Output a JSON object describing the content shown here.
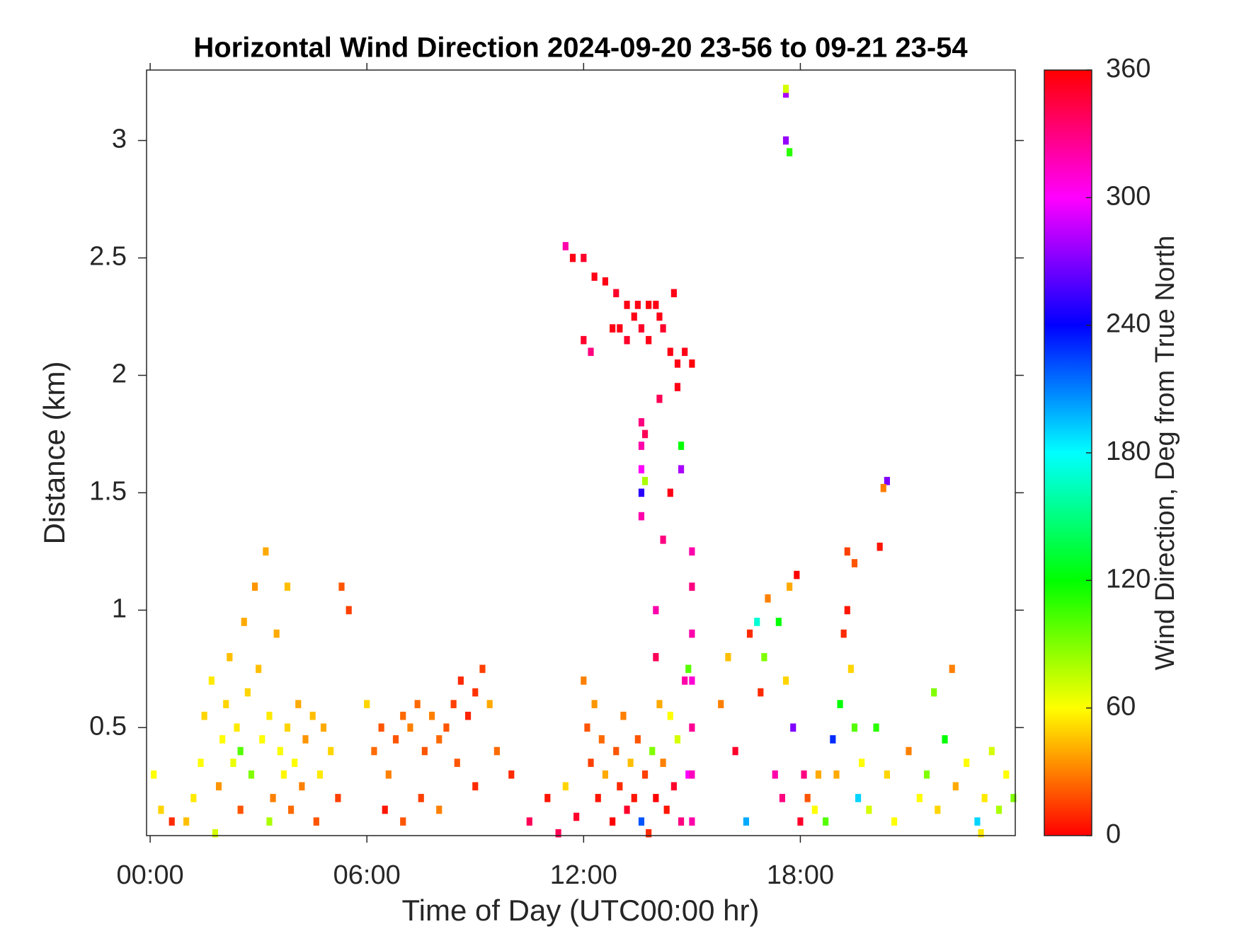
{
  "chart_data": {
    "type": "heatmap",
    "title": "Horizontal Wind Direction 2024-09-20 23-56 to 09-21 23-54",
    "xlabel": "Time of Day (UTC00:00 hr)",
    "ylabel": "Distance (km)",
    "colorbar_label": "Wind Direction, Deg from True North",
    "colormap": "hsv",
    "xlim": [
      -0.1,
      23.95
    ],
    "ylim": [
      0.04,
      3.3
    ],
    "clim": [
      0,
      360
    ],
    "xticks": [
      {
        "value": 0,
        "label": "00:00"
      },
      {
        "value": 6,
        "label": "06:00"
      },
      {
        "value": 12,
        "label": "12:00"
      },
      {
        "value": 18,
        "label": "18:00"
      }
    ],
    "yticks": [
      0.5,
      1,
      1.5,
      2,
      2.5,
      3
    ],
    "cticks": [
      0,
      60,
      120,
      180,
      240,
      300,
      360
    ],
    "cells": [
      [
        1.0,
        0.1,
        45
      ],
      [
        1.2,
        0.2,
        55
      ],
      [
        1.4,
        0.35,
        60
      ],
      [
        1.5,
        0.55,
        50
      ],
      [
        1.7,
        0.7,
        55
      ],
      [
        1.9,
        0.25,
        35
      ],
      [
        2.0,
        0.45,
        60
      ],
      [
        2.1,
        0.6,
        50
      ],
      [
        2.2,
        0.8,
        45
      ],
      [
        2.3,
        0.35,
        65
      ],
      [
        2.4,
        0.5,
        55
      ],
      [
        2.5,
        0.15,
        20
      ],
      [
        2.6,
        0.95,
        40
      ],
      [
        2.7,
        0.65,
        50
      ],
      [
        2.8,
        0.3,
        90
      ],
      [
        2.9,
        1.1,
        35
      ],
      [
        3.0,
        0.75,
        45
      ],
      [
        3.1,
        0.45,
        60
      ],
      [
        3.2,
        1.25,
        40
      ],
      [
        3.3,
        0.55,
        55
      ],
      [
        3.4,
        0.2,
        30
      ],
      [
        3.5,
        0.9,
        40
      ],
      [
        3.6,
        0.4,
        62
      ],
      [
        3.7,
        0.3,
        58
      ],
      [
        3.8,
        0.5,
        50
      ],
      [
        3.9,
        0.15,
        25
      ],
      [
        4.0,
        0.35,
        60
      ],
      [
        4.1,
        0.6,
        40
      ],
      [
        4.2,
        0.25,
        30
      ],
      [
        4.3,
        0.45,
        35
      ],
      [
        4.5,
        0.55,
        45
      ],
      [
        4.6,
        0.1,
        20
      ],
      [
        4.7,
        0.3,
        55
      ],
      [
        4.8,
        0.5,
        40
      ],
      [
        5.0,
        0.4,
        50
      ],
      [
        5.2,
        0.2,
        15
      ],
      [
        5.3,
        1.1,
        20
      ],
      [
        5.5,
        1.0,
        15
      ],
      [
        3.8,
        1.1,
        45
      ],
      [
        1.8,
        0.05,
        70
      ],
      [
        0.1,
        0.3,
        60
      ],
      [
        0.3,
        0.15,
        50
      ],
      [
        0.6,
        0.1,
        10
      ],
      [
        2.5,
        0.4,
        100
      ],
      [
        3.3,
        0.1,
        80
      ],
      [
        6.0,
        0.6,
        50
      ],
      [
        6.2,
        0.4,
        25
      ],
      [
        6.4,
        0.5,
        20
      ],
      [
        6.6,
        0.3,
        30
      ],
      [
        6.8,
        0.45,
        20
      ],
      [
        7.0,
        0.55,
        25
      ],
      [
        7.2,
        0.5,
        30
      ],
      [
        7.4,
        0.6,
        25
      ],
      [
        7.6,
        0.4,
        20
      ],
      [
        7.8,
        0.55,
        30
      ],
      [
        8.0,
        0.45,
        25
      ],
      [
        8.2,
        0.5,
        20
      ],
      [
        8.4,
        0.6,
        15
      ],
      [
        8.6,
        0.7,
        10
      ],
      [
        8.8,
        0.55,
        8
      ],
      [
        9.0,
        0.65,
        12
      ],
      [
        9.2,
        0.75,
        15
      ],
      [
        8.5,
        0.35,
        20
      ],
      [
        9.4,
        0.6,
        40
      ],
      [
        7.5,
        0.2,
        15
      ],
      [
        8.0,
        0.15,
        30
      ],
      [
        9.0,
        0.25,
        10
      ],
      [
        9.6,
        0.4,
        25
      ],
      [
        7.0,
        0.1,
        20
      ],
      [
        6.5,
        0.15,
        5
      ],
      [
        10.0,
        0.3,
        10
      ],
      [
        10.5,
        0.1,
        340
      ],
      [
        11.0,
        0.2,
        5
      ],
      [
        11.3,
        0.05,
        340
      ],
      [
        11.5,
        0.25,
        50
      ],
      [
        11.8,
        0.12,
        350
      ],
      [
        12.0,
        0.7,
        30
      ],
      [
        12.1,
        0.5,
        20
      ],
      [
        12.2,
        0.35,
        15
      ],
      [
        12.3,
        0.6,
        35
      ],
      [
        12.4,
        0.2,
        5
      ],
      [
        12.5,
        0.45,
        25
      ],
      [
        12.6,
        0.3,
        40
      ],
      [
        12.8,
        0.1,
        0
      ],
      [
        12.9,
        0.4,
        20
      ],
      [
        13.0,
        0.25,
        10
      ],
      [
        13.1,
        0.55,
        30
      ],
      [
        13.2,
        0.15,
        350
      ],
      [
        13.3,
        0.35,
        45
      ],
      [
        13.4,
        0.2,
        5
      ],
      [
        13.5,
        0.45,
        20
      ],
      [
        13.6,
        0.1,
        220
      ],
      [
        13.7,
        0.3,
        15
      ],
      [
        13.8,
        0.05,
        10
      ],
      [
        13.9,
        0.4,
        90
      ],
      [
        14.0,
        0.2,
        0
      ],
      [
        14.1,
        0.6,
        40
      ],
      [
        14.2,
        0.35,
        30
      ],
      [
        14.3,
        0.15,
        5
      ],
      [
        14.4,
        0.55,
        60
      ],
      [
        14.5,
        0.25,
        350
      ],
      [
        14.6,
        0.45,
        70
      ],
      [
        14.7,
        0.1,
        330
      ],
      [
        14.8,
        0.7,
        320
      ],
      [
        14.9,
        0.3,
        300
      ],
      [
        15.0,
        0.1,
        320
      ],
      [
        15.0,
        0.3,
        315
      ],
      [
        15.0,
        0.5,
        325
      ],
      [
        15.0,
        0.7,
        310
      ],
      [
        15.0,
        0.9,
        320
      ],
      [
        15.0,
        1.1,
        330
      ],
      [
        15.0,
        1.25,
        320
      ],
      [
        14.9,
        0.75,
        100
      ],
      [
        13.6,
        1.4,
        320
      ],
      [
        13.6,
        1.5,
        250
      ],
      [
        13.6,
        1.6,
        300
      ],
      [
        13.6,
        1.7,
        320
      ],
      [
        13.6,
        1.8,
        330
      ],
      [
        13.7,
        1.55,
        80
      ],
      [
        13.7,
        1.75,
        340
      ],
      [
        14.4,
        1.5,
        355
      ],
      [
        14.7,
        1.7,
        120
      ],
      [
        14.7,
        1.6,
        280
      ],
      [
        14.0,
        1.0,
        320
      ],
      [
        14.0,
        0.8,
        340
      ],
      [
        14.2,
        1.3,
        330
      ],
      [
        11.5,
        2.55,
        320
      ],
      [
        11.7,
        2.5,
        355
      ],
      [
        12.0,
        2.5,
        350
      ],
      [
        12.3,
        2.42,
        355
      ],
      [
        12.6,
        2.4,
        355
      ],
      [
        12.9,
        2.35,
        350
      ],
      [
        13.2,
        2.3,
        355
      ],
      [
        13.4,
        2.25,
        355
      ],
      [
        13.6,
        2.2,
        350
      ],
      [
        13.8,
        2.15,
        355
      ],
      [
        14.0,
        2.3,
        355
      ],
      [
        14.2,
        2.2,
        350
      ],
      [
        14.4,
        2.1,
        355
      ],
      [
        14.6,
        2.05,
        355
      ],
      [
        14.8,
        2.1,
        355
      ],
      [
        15.0,
        2.05,
        358
      ],
      [
        12.0,
        2.15,
        350
      ],
      [
        12.2,
        2.1,
        330
      ],
      [
        13.0,
        2.2,
        355
      ],
      [
        13.2,
        2.15,
        350
      ],
      [
        13.5,
        2.3,
        355
      ],
      [
        13.8,
        2.3,
        358
      ],
      [
        14.1,
        2.25,
        355
      ],
      [
        14.5,
        2.35,
        355
      ],
      [
        14.6,
        1.95,
        355
      ],
      [
        14.1,
        1.9,
        340
      ],
      [
        12.8,
        2.2,
        355
      ],
      [
        17.6,
        3.2,
        280
      ],
      [
        17.6,
        3.0,
        275
      ],
      [
        17.7,
        2.95,
        110
      ],
      [
        17.6,
        3.22,
        70
      ],
      [
        20.4,
        1.55,
        270
      ],
      [
        20.3,
        1.52,
        30
      ],
      [
        16.5,
        0.1,
        200
      ],
      [
        16.6,
        0.9,
        10
      ],
      [
        16.8,
        0.95,
        170
      ],
      [
        17.0,
        0.8,
        90
      ],
      [
        17.1,
        1.05,
        30
      ],
      [
        17.3,
        0.3,
        320
      ],
      [
        17.4,
        0.95,
        120
      ],
      [
        17.5,
        0.2,
        330
      ],
      [
        17.6,
        0.7,
        50
      ],
      [
        17.7,
        1.1,
        40
      ],
      [
        17.8,
        0.5,
        270
      ],
      [
        17.9,
        1.15,
        0
      ],
      [
        15.8,
        0.6,
        30
      ],
      [
        16.0,
        0.8,
        45
      ],
      [
        16.2,
        0.4,
        350
      ],
      [
        16.9,
        0.65,
        10
      ],
      [
        18.0,
        0.1,
        350
      ],
      [
        18.1,
        0.3,
        330
      ],
      [
        18.2,
        0.2,
        20
      ],
      [
        18.4,
        0.15,
        60
      ],
      [
        18.5,
        0.3,
        40
      ],
      [
        18.7,
        0.1,
        100
      ],
      [
        18.9,
        0.45,
        230
      ],
      [
        19.0,
        0.3,
        40
      ],
      [
        19.1,
        0.6,
        120
      ],
      [
        19.2,
        0.9,
        10
      ],
      [
        19.3,
        1.25,
        15
      ],
      [
        19.3,
        1.0,
        5
      ],
      [
        19.4,
        0.75,
        50
      ],
      [
        19.5,
        0.5,
        100
      ],
      [
        19.6,
        0.2,
        190
      ],
      [
        19.5,
        1.2,
        20
      ],
      [
        19.7,
        0.35,
        60
      ],
      [
        19.9,
        0.15,
        70
      ],
      [
        20.1,
        0.5,
        110
      ],
      [
        20.2,
        1.27,
        5
      ],
      [
        20.4,
        0.3,
        50
      ],
      [
        20.6,
        0.1,
        60
      ],
      [
        21.0,
        0.4,
        30
      ],
      [
        21.3,
        0.2,
        60
      ],
      [
        21.5,
        0.3,
        90
      ],
      [
        21.8,
        0.15,
        50
      ],
      [
        22.0,
        0.45,
        120
      ],
      [
        22.3,
        0.25,
        40
      ],
      [
        22.6,
        0.35,
        60
      ],
      [
        22.9,
        0.1,
        190
      ],
      [
        23.1,
        0.2,
        55
      ],
      [
        23.3,
        0.4,
        70
      ],
      [
        23.5,
        0.15,
        80
      ],
      [
        23.7,
        0.3,
        60
      ],
      [
        23.9,
        0.2,
        90
      ],
      [
        22.2,
        0.75,
        30
      ],
      [
        21.7,
        0.65,
        90
      ],
      [
        23.0,
        0.05,
        55
      ]
    ]
  }
}
